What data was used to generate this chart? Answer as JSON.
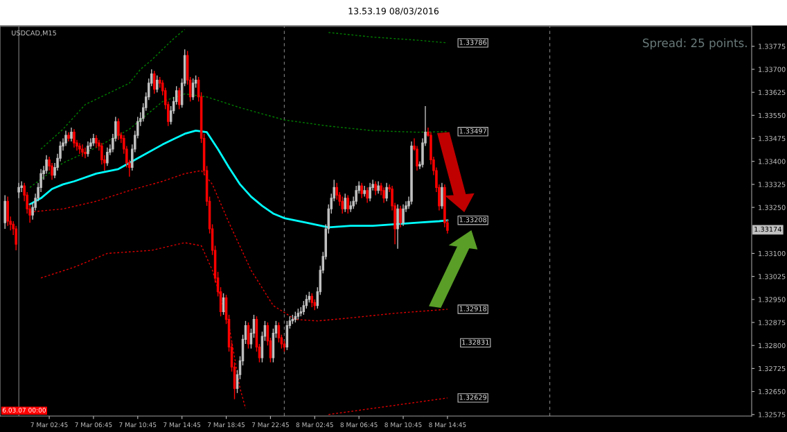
{
  "chart_data": {
    "type": "candlestick",
    "title": "13.53.19 08/03/2016",
    "subtitle": "USDCAD,M15",
    "x": [
      "2016-03-06T22:45",
      "2016-03-06T23:00",
      "2016-03-06T23:15",
      "2016-03-06T23:30",
      "2016-03-06T23:45",
      "2016-03-07T00:00",
      "2016-03-07T00:15",
      "2016-03-07T00:30",
      "2016-03-07T00:45",
      "2016-03-07T01:00",
      "2016-03-07T01:15",
      "2016-03-07T01:30",
      "2016-03-07T01:45",
      "2016-03-07T02:00",
      "2016-03-07T02:15",
      "2016-03-07T02:30",
      "2016-03-07T02:45",
      "2016-03-07T03:00",
      "2016-03-07T03:15",
      "2016-03-07T03:30",
      "2016-03-07T03:45",
      "2016-03-07T04:00",
      "2016-03-07T04:15",
      "2016-03-07T04:30",
      "2016-03-07T04:45",
      "2016-03-07T05:00",
      "2016-03-07T05:15",
      "2016-03-07T05:30",
      "2016-03-07T05:45",
      "2016-03-07T06:00",
      "2016-03-07T06:15",
      "2016-03-07T06:30",
      "2016-03-07T06:45",
      "2016-03-07T07:00",
      "2016-03-07T07:15",
      "2016-03-07T07:30",
      "2016-03-07T07:45",
      "2016-03-07T08:00",
      "2016-03-07T08:15",
      "2016-03-07T08:30",
      "2016-03-07T08:45",
      "2016-03-07T09:00",
      "2016-03-07T09:15",
      "2016-03-07T09:30",
      "2016-03-07T09:45",
      "2016-03-07T10:00",
      "2016-03-07T10:15",
      "2016-03-07T10:30",
      "2016-03-07T10:45",
      "2016-03-07T11:00",
      "2016-03-07T11:15",
      "2016-03-07T11:30",
      "2016-03-07T11:45",
      "2016-03-07T12:00",
      "2016-03-07T12:15",
      "2016-03-07T12:30",
      "2016-03-07T12:45",
      "2016-03-07T13:00",
      "2016-03-07T13:15",
      "2016-03-07T13:30",
      "2016-03-07T13:45",
      "2016-03-07T14:00",
      "2016-03-07T14:15",
      "2016-03-07T14:30",
      "2016-03-07T14:45",
      "2016-03-07T15:00",
      "2016-03-07T15:15",
      "2016-03-07T15:30",
      "2016-03-07T15:45",
      "2016-03-07T16:00",
      "2016-03-07T16:15",
      "2016-03-07T16:30",
      "2016-03-07T16:45",
      "2016-03-07T17:00",
      "2016-03-07T17:15",
      "2016-03-07T17:30",
      "2016-03-07T17:45",
      "2016-03-07T18:00",
      "2016-03-07T18:15",
      "2016-03-07T18:30",
      "2016-03-07T18:45",
      "2016-03-07T19:00",
      "2016-03-07T19:15",
      "2016-03-07T19:30",
      "2016-03-07T19:45",
      "2016-03-07T20:00",
      "2016-03-07T20:15",
      "2016-03-07T20:30",
      "2016-03-07T20:45",
      "2016-03-07T21:00",
      "2016-03-07T21:15",
      "2016-03-07T21:30",
      "2016-03-07T21:45",
      "2016-03-07T22:00",
      "2016-03-07T22:15",
      "2016-03-07T22:30",
      "2016-03-07T22:45",
      "2016-03-07T23:00",
      "2016-03-07T23:15",
      "2016-03-07T23:30",
      "2016-03-07T23:45",
      "2016-03-08T00:00",
      "2016-03-08T00:15",
      "2016-03-08T00:30",
      "2016-03-08T00:45",
      "2016-03-08T01:00",
      "2016-03-08T01:15",
      "2016-03-08T01:30",
      "2016-03-08T01:45",
      "2016-03-08T02:00",
      "2016-03-08T02:15",
      "2016-03-08T02:30",
      "2016-03-08T02:45",
      "2016-03-08T03:00",
      "2016-03-08T03:15",
      "2016-03-08T03:30",
      "2016-03-08T03:45",
      "2016-03-08T04:00",
      "2016-03-08T04:15",
      "2016-03-08T04:30",
      "2016-03-08T04:45",
      "2016-03-08T05:00",
      "2016-03-08T05:15",
      "2016-03-08T05:30",
      "2016-03-08T05:45",
      "2016-03-08T06:00",
      "2016-03-08T06:15",
      "2016-03-08T06:30",
      "2016-03-08T06:45",
      "2016-03-08T07:00",
      "2016-03-08T07:15",
      "2016-03-08T07:30",
      "2016-03-08T07:45",
      "2016-03-08T08:00",
      "2016-03-08T08:15",
      "2016-03-08T08:30",
      "2016-03-08T08:45",
      "2016-03-08T09:00",
      "2016-03-08T09:15",
      "2016-03-08T09:30",
      "2016-03-08T09:45",
      "2016-03-08T10:00",
      "2016-03-08T10:15",
      "2016-03-08T10:30",
      "2016-03-08T10:45",
      "2016-03-08T11:00",
      "2016-03-08T11:15",
      "2016-03-08T11:30",
      "2016-03-08T11:45",
      "2016-03-08T12:00",
      "2016-03-08T12:15",
      "2016-03-08T12:30",
      "2016-03-08T12:45",
      "2016-03-08T13:00",
      "2016-03-08T13:15",
      "2016-03-08T13:30",
      "2016-03-08T13:45",
      "2016-03-08T14:00",
      "2016-03-08T14:15",
      "2016-03-08T14:30",
      "2016-03-08T14:45"
    ],
    "ohlc": [
      [
        1.332,
        1.3329,
        1.3318,
        1.3327
      ],
      [
        1.3327,
        1.33285,
        1.3319,
        1.33205
      ],
      [
        1.33205,
        1.3322,
        1.33175,
        1.33195
      ],
      [
        1.33195,
        1.33205,
        1.3316,
        1.3318
      ],
      [
        1.3318,
        1.3319,
        1.3311,
        1.3313
      ],
      [
        1.333,
        1.3333,
        1.3328,
        1.33315
      ],
      [
        1.33315,
        1.33335,
        1.333,
        1.3332
      ],
      [
        1.3332,
        1.3333,
        1.3327,
        1.3329
      ],
      [
        1.3329,
        1.333,
        1.3323,
        1.33245
      ],
      [
        1.33245,
        1.3326,
        1.332,
        1.33225
      ],
      [
        1.33225,
        1.33265,
        1.3321,
        1.3325
      ],
      [
        1.3325,
        1.33295,
        1.3324,
        1.3328
      ],
      [
        1.3328,
        1.3333,
        1.3327,
        1.33315
      ],
      [
        1.33315,
        1.33375,
        1.333,
        1.3336
      ],
      [
        1.3336,
        1.33385,
        1.3334,
        1.3337
      ],
      [
        1.3337,
        1.3342,
        1.3336,
        1.33405
      ],
      [
        1.33405,
        1.33415,
        1.3337,
        1.33385
      ],
      [
        1.33385,
        1.33395,
        1.3334,
        1.33355
      ],
      [
        1.33355,
        1.33395,
        1.33345,
        1.3338
      ],
      [
        1.3338,
        1.33425,
        1.3337,
        1.3341
      ],
      [
        1.3341,
        1.33465,
        1.334,
        1.3345
      ],
      [
        1.3345,
        1.33475,
        1.33435,
        1.3346
      ],
      [
        1.3346,
        1.335,
        1.3345,
        1.33485
      ],
      [
        1.33485,
        1.33495,
        1.33465,
        1.33475
      ],
      [
        1.33475,
        1.3351,
        1.33465,
        1.33495
      ],
      [
        1.33495,
        1.33505,
        1.33445,
        1.3346
      ],
      [
        1.3346,
        1.3347,
        1.33435,
        1.3345
      ],
      [
        1.3345,
        1.3346,
        1.33425,
        1.3344
      ],
      [
        1.3344,
        1.33455,
        1.33415,
        1.3343
      ],
      [
        1.3343,
        1.33445,
        1.3341,
        1.33425
      ],
      [
        1.33425,
        1.33465,
        1.33415,
        1.3345
      ],
      [
        1.3345,
        1.33475,
        1.3344,
        1.3346
      ],
      [
        1.3346,
        1.3349,
        1.3345,
        1.33475
      ],
      [
        1.33475,
        1.33485,
        1.33445,
        1.3346
      ],
      [
        1.3346,
        1.3347,
        1.33435,
        1.3345
      ],
      [
        1.3345,
        1.3346,
        1.3339,
        1.33405
      ],
      [
        1.33405,
        1.3342,
        1.3337,
        1.33395
      ],
      [
        1.33395,
        1.33445,
        1.33385,
        1.3343
      ],
      [
        1.3343,
        1.33455,
        1.3342,
        1.3344
      ],
      [
        1.3344,
        1.3349,
        1.3343,
        1.33475
      ],
      [
        1.33475,
        1.33545,
        1.33465,
        1.3353
      ],
      [
        1.3353,
        1.3354,
        1.3347,
        1.33485
      ],
      [
        1.33485,
        1.33495,
        1.3346,
        1.33475
      ],
      [
        1.33475,
        1.33485,
        1.33425,
        1.3344
      ],
      [
        1.3344,
        1.3345,
        1.3338,
        1.33395
      ],
      [
        1.33395,
        1.33405,
        1.3335,
        1.3338
      ],
      [
        1.3338,
        1.33455,
        1.3337,
        1.3344
      ],
      [
        1.3344,
        1.335,
        1.3343,
        1.33485
      ],
      [
        1.33485,
        1.33545,
        1.33475,
        1.3353
      ],
      [
        1.3353,
        1.3356,
        1.33515,
        1.3354
      ],
      [
        1.3354,
        1.3359,
        1.3353,
        1.33575
      ],
      [
        1.33575,
        1.33625,
        1.33565,
        1.3361
      ],
      [
        1.3361,
        1.3367,
        1.336,
        1.33655
      ],
      [
        1.33655,
        1.337,
        1.33645,
        1.33685
      ],
      [
        1.33685,
        1.33695,
        1.3362,
        1.33635
      ],
      [
        1.33635,
        1.3368,
        1.33625,
        1.33665
      ],
      [
        1.33665,
        1.33675,
        1.3364,
        1.33655
      ],
      [
        1.33655,
        1.33665,
        1.33615,
        1.3363
      ],
      [
        1.3363,
        1.3364,
        1.3357,
        1.33585
      ],
      [
        1.33585,
        1.33595,
        1.33515,
        1.3353
      ],
      [
        1.3353,
        1.3358,
        1.3352,
        1.33565
      ],
      [
        1.33565,
        1.3361,
        1.33555,
        1.33595
      ],
      [
        1.33595,
        1.33645,
        1.33585,
        1.3363
      ],
      [
        1.3363,
        1.3364,
        1.3357,
        1.33585
      ],
      [
        1.33585,
        1.3367,
        1.33575,
        1.33655
      ],
      [
        1.33655,
        1.33765,
        1.33645,
        1.33745
      ],
      [
        1.33745,
        1.3376,
        1.3365,
        1.33665
      ],
      [
        1.33665,
        1.33675,
        1.33595,
        1.3361
      ],
      [
        1.3361,
        1.3367,
        1.336,
        1.33655
      ],
      [
        1.33655,
        1.3368,
        1.3364,
        1.33665
      ],
      [
        1.33665,
        1.33675,
        1.33595,
        1.3361
      ],
      [
        1.3361,
        1.33625,
        1.3346,
        1.33475
      ],
      [
        1.33475,
        1.3349,
        1.33355,
        1.3337
      ],
      [
        1.3337,
        1.33385,
        1.33255,
        1.3327
      ],
      [
        1.3327,
        1.33285,
        1.33165,
        1.3318
      ],
      [
        1.3318,
        1.33195,
        1.33095,
        1.3311
      ],
      [
        1.3311,
        1.33125,
        1.33005,
        1.3302
      ],
      [
        1.3302,
        1.3304,
        1.3296,
        1.32975
      ],
      [
        1.32975,
        1.3299,
        1.32895,
        1.3291
      ],
      [
        1.3291,
        1.3297,
        1.329,
        1.32955
      ],
      [
        1.32955,
        1.32965,
        1.3287,
        1.32885
      ],
      [
        1.32885,
        1.329,
        1.3278,
        1.32795
      ],
      [
        1.32795,
        1.3281,
        1.32715,
        1.3273
      ],
      [
        1.3273,
        1.32745,
        1.32625,
        1.3266
      ],
      [
        1.3266,
        1.3272,
        1.32645,
        1.32705
      ],
      [
        1.32705,
        1.32765,
        1.3269,
        1.3275
      ],
      [
        1.3275,
        1.32835,
        1.32735,
        1.3282
      ],
      [
        1.3282,
        1.3288,
        1.32805,
        1.32865
      ],
      [
        1.32865,
        1.32875,
        1.3279,
        1.32805
      ],
      [
        1.32805,
        1.32855,
        1.3279,
        1.3284
      ],
      [
        1.3284,
        1.329,
        1.32825,
        1.32885
      ],
      [
        1.32885,
        1.32895,
        1.3278,
        1.32795
      ],
      [
        1.32795,
        1.32805,
        1.32745,
        1.3276
      ],
      [
        1.3276,
        1.32845,
        1.32745,
        1.3283
      ],
      [
        1.3283,
        1.3288,
        1.32815,
        1.32865
      ],
      [
        1.32865,
        1.32875,
        1.328,
        1.32815
      ],
      [
        1.32815,
        1.32825,
        1.32745,
        1.3276
      ],
      [
        1.3276,
        1.32855,
        1.32745,
        1.3284
      ],
      [
        1.3284,
        1.3288,
        1.32825,
        1.32865
      ],
      [
        1.32865,
        1.32875,
        1.3281,
        1.32825
      ],
      [
        1.32825,
        1.32835,
        1.3279,
        1.32805
      ],
      [
        1.32805,
        1.32815,
        1.3278,
        1.32795
      ],
      [
        1.32795,
        1.3288,
        1.32785,
        1.32865
      ],
      [
        1.32865,
        1.32895,
        1.32855,
        1.3288
      ],
      [
        1.3288,
        1.329,
        1.3287,
        1.32885
      ],
      [
        1.32885,
        1.3291,
        1.32875,
        1.32895
      ],
      [
        1.32895,
        1.3292,
        1.32885,
        1.32905
      ],
      [
        1.32905,
        1.32925,
        1.32895,
        1.3291
      ],
      [
        1.3291,
        1.32945,
        1.329,
        1.3293
      ],
      [
        1.3293,
        1.32965,
        1.3292,
        1.3295
      ],
      [
        1.3295,
        1.32975,
        1.3294,
        1.3296
      ],
      [
        1.3296,
        1.3297,
        1.32925,
        1.3294
      ],
      [
        1.3294,
        1.3295,
        1.32915,
        1.3293
      ],
      [
        1.3293,
        1.3299,
        1.3292,
        1.32975
      ],
      [
        1.32975,
        1.3306,
        1.32965,
        1.33045
      ],
      [
        1.33045,
        1.33105,
        1.33035,
        1.3309
      ],
      [
        1.3309,
        1.33195,
        1.3308,
        1.3318
      ],
      [
        1.3318,
        1.3326,
        1.33165,
        1.33245
      ],
      [
        1.33245,
        1.33295,
        1.3323,
        1.3328
      ],
      [
        1.3328,
        1.3334,
        1.3327,
        1.33315
      ],
      [
        1.33315,
        1.3333,
        1.33275,
        1.3329
      ],
      [
        1.3329,
        1.333,
        1.33255,
        1.3327
      ],
      [
        1.3327,
        1.33285,
        1.3323,
        1.33245
      ],
      [
        1.33245,
        1.33295,
        1.33235,
        1.3328
      ],
      [
        1.3328,
        1.3329,
        1.3323,
        1.33245
      ],
      [
        1.33245,
        1.3327,
        1.33235,
        1.33255
      ],
      [
        1.33255,
        1.33285,
        1.33245,
        1.3327
      ],
      [
        1.3327,
        1.3332,
        1.3326,
        1.33305
      ],
      [
        1.33305,
        1.33335,
        1.33295,
        1.3332
      ],
      [
        1.3332,
        1.3333,
        1.3328,
        1.33295
      ],
      [
        1.33295,
        1.3332,
        1.33285,
        1.33305
      ],
      [
        1.33305,
        1.33315,
        1.33265,
        1.3328
      ],
      [
        1.3328,
        1.3333,
        1.3327,
        1.33315
      ],
      [
        1.33315,
        1.3334,
        1.33305,
        1.33325
      ],
      [
        1.33325,
        1.33335,
        1.3329,
        1.33305
      ],
      [
        1.33305,
        1.33335,
        1.33295,
        1.3332
      ],
      [
        1.3332,
        1.3333,
        1.3329,
        1.33305
      ],
      [
        1.33305,
        1.33315,
        1.33265,
        1.3328
      ],
      [
        1.3328,
        1.3333,
        1.3327,
        1.33315
      ],
      [
        1.33315,
        1.33325,
        1.333,
        1.3331
      ],
      [
        1.3331,
        1.3332,
        1.3324,
        1.33255
      ],
      [
        1.33255,
        1.33265,
        1.3313,
        1.3318
      ],
      [
        1.3318,
        1.3326,
        1.33115,
        1.33245
      ],
      [
        1.33245,
        1.33255,
        1.33185,
        1.332
      ],
      [
        1.332,
        1.3326,
        1.3319,
        1.33245
      ],
      [
        1.33245,
        1.3327,
        1.33235,
        1.33255
      ],
      [
        1.33255,
        1.33285,
        1.33245,
        1.3327
      ],
      [
        1.3327,
        1.33465,
        1.3326,
        1.3345
      ],
      [
        1.3345,
        1.33475,
        1.33435,
        1.3344
      ],
      [
        1.3344,
        1.3345,
        1.3337,
        1.33385
      ],
      [
        1.33385,
        1.334,
        1.33375,
        1.3339
      ],
      [
        1.3339,
        1.33475,
        1.3338,
        1.3346
      ],
      [
        1.3346,
        1.3358,
        1.3345,
        1.33495
      ],
      [
        1.33495,
        1.3351,
        1.3348,
        1.33485
      ],
      [
        1.33485,
        1.33495,
        1.3339,
        1.33405
      ],
      [
        1.33405,
        1.33415,
        1.33355,
        1.3337
      ],
      [
        1.3337,
        1.3338,
        1.333,
        1.33315
      ],
      [
        1.33315,
        1.33325,
        1.3324,
        1.33255
      ],
      [
        1.33255,
        1.3333,
        1.33245,
        1.33315
      ],
      [
        1.33315,
        1.33325,
        1.33185,
        1.332
      ],
      [
        1.332,
        1.3321,
        1.33165,
        1.33175
      ]
    ],
    "colors": [
      "#c0c0c0",
      "#ff0000",
      "#ff0000",
      "#ff0000",
      "#ff0000",
      "#c0c0c0",
      "#c0c0c0",
      "#ff0000",
      "#ff0000",
      "#ff0000",
      "#c0c0c0",
      "#c0c0c0",
      "#c0c0c0",
      "#c0c0c0",
      "#c0c0c0",
      "#c0c0c0",
      "#ff0000",
      "#ff0000",
      "#c0c0c0",
      "#c0c0c0",
      "#c0c0c0",
      "#c0c0c0",
      "#c0c0c0",
      "#ff0000",
      "#c0c0c0",
      "#ff0000",
      "#ff0000",
      "#ff0000",
      "#ff0000",
      "#ff0000",
      "#c0c0c0",
      "#c0c0c0",
      "#c0c0c0",
      "#ff0000",
      "#ff0000",
      "#ff0000",
      "#ff0000",
      "#c0c0c0",
      "#c0c0c0",
      "#c0c0c0",
      "#c0c0c0",
      "#ff0000",
      "#ff0000",
      "#ff0000",
      "#ff0000",
      "#ff0000",
      "#c0c0c0",
      "#c0c0c0",
      "#c0c0c0",
      "#c0c0c0",
      "#c0c0c0",
      "#c0c0c0",
      "#c0c0c0",
      "#c0c0c0",
      "#ff0000",
      "#c0c0c0",
      "#ff0000",
      "#ff0000",
      "#ff0000",
      "#ff0000",
      "#c0c0c0",
      "#c0c0c0",
      "#c0c0c0",
      "#ff0000",
      "#c0c0c0",
      "#c0c0c0",
      "#ff0000",
      "#ff0000",
      "#c0c0c0",
      "#c0c0c0",
      "#ff0000",
      "#ff0000",
      "#ff0000",
      "#ff0000",
      "#ff0000",
      "#ff0000",
      "#ff0000",
      "#ff0000",
      "#ff0000",
      "#c0c0c0",
      "#ff0000",
      "#ff0000",
      "#ff0000",
      "#ff0000",
      "#c0c0c0",
      "#c0c0c0",
      "#c0c0c0",
      "#c0c0c0",
      "#ff0000",
      "#c0c0c0",
      "#c0c0c0",
      "#ff0000",
      "#ff0000",
      "#c0c0c0",
      "#c0c0c0",
      "#ff0000",
      "#ff0000",
      "#c0c0c0",
      "#c0c0c0",
      "#ff0000",
      "#ff0000",
      "#ff0000",
      "#c0c0c0",
      "#c0c0c0",
      "#c0c0c0",
      "#c0c0c0",
      "#c0c0c0",
      "#c0c0c0",
      "#c0c0c0",
      "#c0c0c0",
      "#c0c0c0",
      "#ff0000",
      "#ff0000",
      "#c0c0c0",
      "#c0c0c0",
      "#c0c0c0",
      "#c0c0c0",
      "#c0c0c0",
      "#c0c0c0",
      "#c0c0c0",
      "#ff0000",
      "#ff0000",
      "#ff0000",
      "#c0c0c0",
      "#ff0000",
      "#c0c0c0",
      "#c0c0c0",
      "#c0c0c0",
      "#c0c0c0",
      "#ff0000",
      "#c0c0c0",
      "#ff0000",
      "#c0c0c0",
      "#c0c0c0",
      "#ff0000",
      "#c0c0c0",
      "#ff0000",
      "#ff0000",
      "#c0c0c0",
      "#ff0000",
      "#ff0000",
      "#ff0000",
      "#c0c0c0",
      "#ff0000",
      "#c0c0c0",
      "#c0c0c0",
      "#c0c0c0",
      "#c0c0c0",
      "#ff0000",
      "#ff0000",
      "#c0c0c0",
      "#c0c0c0",
      "#c0c0c0",
      "#ff0000",
      "#ff0000",
      "#ff0000",
      "#ff0000",
      "#ff0000",
      "#c0c0c0",
      "#ff0000",
      "#ff0000"
    ],
    "series": [
      {
        "type": "line",
        "color": "#00ffff",
        "line_style": "solid",
        "x": [
          "2016-03-07T01:00",
          "2016-03-07T02:00",
          "2016-03-07T03:00",
          "2016-03-07T04:00",
          "2016-03-07T05:00",
          "2016-03-07T07:00",
          "2016-03-07T09:00",
          "2016-03-07T11:00",
          "2016-03-07T13:00",
          "2016-03-07T15:00",
          "2016-03-07T16:00",
          "2016-03-07T17:00",
          "2016-03-07T18:00",
          "2016-03-07T19:00",
          "2016-03-07T20:00",
          "2016-03-07T21:00",
          "2016-03-07T22:00",
          "2016-03-07T23:00",
          "2016-03-08T00:00",
          "2016-03-08T02:00",
          "2016-03-08T04:00",
          "2016-03-08T06:00",
          "2016-03-08T08:00",
          "2016-03-08T10:00",
          "2016-03-08T12:00",
          "2016-03-08T14:00",
          "2016-03-08T14:45"
        ],
        "values": [
          1.3326,
          1.3328,
          1.3331,
          1.33325,
          1.33335,
          1.3336,
          1.33375,
          1.33415,
          1.33455,
          1.3349,
          1.335,
          1.33495,
          1.3344,
          1.3338,
          1.33325,
          1.33285,
          1.33255,
          1.3323,
          1.33215,
          1.332,
          1.33185,
          1.3319,
          1.3319,
          1.33195,
          1.332,
          1.33205,
          1.33208
        ]
      },
      {
        "type": "line",
        "color": "#008000",
        "line_style": "dotted",
        "x": [
          "2016-03-07T02:00",
          "2016-03-07T04:00",
          "2016-03-07T06:00",
          "2016-03-07T08:00",
          "2016-03-07T10:00",
          "2016-03-07T11:00",
          "2016-03-07T12:00",
          "2016-03-07T13:00",
          "2016-03-07T14:00",
          "2016-03-07T15:00",
          "2016-03-07T21:00",
          "2016-03-08T04:00",
          "2016-03-08T08:00",
          "2016-03-08T12:00",
          "2016-03-08T14:45"
        ],
        "values": [
          1.3344,
          1.33505,
          1.33585,
          1.3362,
          1.33655,
          1.337,
          1.3373,
          1.33765,
          1.338,
          1.3383,
          null,
          1.3382,
          1.33805,
          1.33795,
          1.33786
        ]
      },
      {
        "type": "line",
        "color": "#008000",
        "line_style": "dotted",
        "x": [
          "2016-03-07T01:00",
          "2016-03-07T04:00",
          "2016-03-07T07:00",
          "2016-03-07T10:00",
          "2016-03-07T13:00",
          "2016-03-07T15:00",
          "2016-03-07T17:00",
          "2016-03-07T20:00",
          "2016-03-08T00:00",
          "2016-03-08T04:00",
          "2016-03-08T08:00",
          "2016-03-08T12:00",
          "2016-03-08T14:45"
        ],
        "values": [
          1.33315,
          1.33395,
          1.33445,
          1.33505,
          1.33595,
          1.3362,
          1.3361,
          1.33575,
          1.33535,
          1.33515,
          1.335,
          1.33495,
          1.33497
        ]
      },
      {
        "type": "line",
        "color": "#e00000",
        "line_style": "dotted",
        "x": [
          "2016-03-07T01:00",
          "2016-03-07T04:00",
          "2016-03-07T07:00",
          "2016-03-07T10:00",
          "2016-03-07T13:00",
          "2016-03-07T15:00",
          "2016-03-07T16:30",
          "2016-03-07T17:30",
          "2016-03-07T19:00",
          "2016-03-07T21:00",
          "2016-03-07T23:00",
          "2016-03-08T01:00",
          "2016-03-08T03:00",
          "2016-03-08T06:00",
          "2016-03-08T10:00",
          "2016-03-08T14:45"
        ],
        "values": [
          1.33235,
          1.33245,
          1.3327,
          1.33305,
          1.33335,
          1.3336,
          1.3337,
          1.33325,
          1.332,
          1.33045,
          1.3293,
          1.32885,
          1.3288,
          1.3289,
          1.32905,
          1.32918
        ]
      },
      {
        "type": "line",
        "color": "#e00000",
        "line_style": "dotted",
        "x": [
          "2016-03-07T02:00",
          "2016-03-07T05:00",
          "2016-03-07T08:00",
          "2016-03-07T12:00",
          "2016-03-07T15:00",
          "2016-03-07T16:30",
          "2016-03-07T17:30",
          "2016-03-07T19:00",
          "2016-03-07T20:00",
          "2016-03-07T20:30",
          "2016-03-08T00:00",
          "2016-03-08T04:00",
          "2016-03-08T08:00",
          "2016-03-08T12:00",
          "2016-03-08T14:45"
        ],
        "values": [
          1.3302,
          1.33055,
          1.331,
          1.3311,
          1.33135,
          1.33125,
          1.33045,
          1.32865,
          1.3266,
          1.32595,
          null,
          1.32575,
          1.32595,
          1.32615,
          1.32629
        ]
      }
    ],
    "xlim": [
      "2016-03-06T22:18",
      "2016-03-09T18:15"
    ],
    "xticks": [
      {
        "value": "2016-03-07T02:45",
        "label": "7 Mar 02:45"
      },
      {
        "value": "2016-03-07T06:45",
        "label": "7 Mar 06:45"
      },
      {
        "value": "2016-03-07T10:45",
        "label": "7 Mar 10:45"
      },
      {
        "value": "2016-03-07T14:45",
        "label": "7 Mar 14:45"
      },
      {
        "value": "2016-03-07T18:45",
        "label": "7 Mar 18:45"
      },
      {
        "value": "2016-03-07T22:45",
        "label": "7 Mar 22:45"
      },
      {
        "value": "2016-03-08T02:45",
        "label": "8 Mar 02:45"
      },
      {
        "value": "2016-03-08T06:45",
        "label": "8 Mar 06:45"
      },
      {
        "value": "2016-03-08T10:45",
        "label": "8 Mar 10:45"
      },
      {
        "value": "2016-03-08T14:45",
        "label": "8 Mar 14:45"
      }
    ],
    "ylim": [
      1.3257,
      1.3384
    ],
    "yticks": [
      {
        "value": 1.32575,
        "label": "1.32575"
      },
      {
        "value": 1.3265,
        "label": "1.32650"
      },
      {
        "value": 1.32725,
        "label": "1.32725"
      },
      {
        "value": 1.328,
        "label": "1.32800"
      },
      {
        "value": 1.32875,
        "label": "1.32875"
      },
      {
        "value": 1.3295,
        "label": "1.32950"
      },
      {
        "value": 1.33025,
        "label": "1.33025"
      },
      {
        "value": 1.331,
        "label": "1.33100"
      },
      {
        "value": 1.3325,
        "label": "1.33250"
      },
      {
        "value": 1.33325,
        "label": "1.33325"
      },
      {
        "value": 1.334,
        "label": "1.33400"
      },
      {
        "value": 1.33475,
        "label": "1.33475"
      },
      {
        "value": 1.3355,
        "label": "1.33550"
      },
      {
        "value": 1.33625,
        "label": "1.33625"
      },
      {
        "value": 1.337,
        "label": "1.33700"
      },
      {
        "value": 1.33775,
        "label": "1.33775"
      }
    ],
    "ref_lines": [
      {
        "axis": "x",
        "value": "2016-03-07T00:00",
        "color": "#808080",
        "line_style": "solid"
      },
      {
        "axis": "x",
        "value": "2016-03-08T00:00",
        "color": "#808080",
        "line_style": "dashed"
      },
      {
        "axis": "x",
        "value": "2016-03-09T00:00",
        "color": "#808080",
        "line_style": "dashed"
      }
    ],
    "annotations": [
      "Spread: 25 points.",
      "6.03.07 00:00",
      "1.32831",
      "1.33174",
      {
        "text": "1.33786",
        "x": "2016-03-08T14:45",
        "y": 1.33786
      },
      {
        "text": "1.33497",
        "x": "2016-03-08T14:45",
        "y": 1.33497
      },
      {
        "text": "1.33208",
        "x": "2016-03-08T14:45",
        "y": 1.33208
      },
      {
        "text": "1.32918",
        "x": "2016-03-08T14:45",
        "y": 1.32918
      },
      {
        "text": "1.32629",
        "x": "2016-03-08T14:45",
        "y": 1.32629
      }
    ],
    "grid": false
  }
}
